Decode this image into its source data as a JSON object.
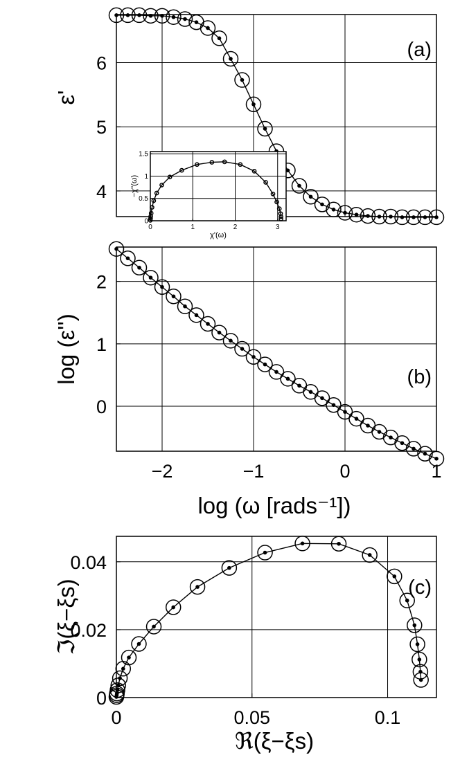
{
  "chart_data": [
    {
      "id": "a",
      "type": "scatter",
      "panel_label": "(a)",
      "title": "",
      "xlabel": "",
      "ylabel": "ε'",
      "xlim": [
        -2.5,
        1.0
      ],
      "ylim": [
        3.6,
        6.75
      ],
      "xticks": [
        -2,
        -1,
        0,
        1
      ],
      "show_xtick_labels": false,
      "yticks": [
        4,
        5,
        6
      ],
      "ytick_labels": [
        "4",
        "5",
        "6"
      ],
      "grid": true,
      "markers": "open circles with center dots joined by a line",
      "series": [
        {
          "x": [
            -2.5,
            -2.375,
            -2.25,
            -2.125,
            -2.0,
            -1.875,
            -1.75,
            -1.625,
            -1.5,
            -1.375,
            -1.25,
            -1.125,
            -1.0,
            -0.875,
            -0.75,
            -0.625,
            -0.5,
            -0.375,
            -0.25,
            -0.125,
            0.0,
            0.125,
            0.25,
            0.375,
            0.5,
            0.625,
            0.75,
            0.875,
            1.0
          ],
          "y": [
            6.74,
            6.74,
            6.74,
            6.73,
            6.73,
            6.71,
            6.68,
            6.63,
            6.54,
            6.38,
            6.06,
            5.73,
            5.35,
            4.97,
            4.62,
            4.32,
            4.08,
            3.91,
            3.79,
            3.71,
            3.66,
            3.63,
            3.61,
            3.6,
            3.6,
            3.59,
            3.59,
            3.59,
            3.59
          ]
        }
      ]
    },
    {
      "id": "a-inset",
      "type": "scatter",
      "title": "",
      "xlabel": "χ'(ω)",
      "ylabel": "−χ''(ω)",
      "xlim": [
        0,
        3.2
      ],
      "ylim": [
        0,
        1.55
      ],
      "xticks": [
        0,
        1,
        2,
        3
      ],
      "xtick_labels": [
        "0",
        "1",
        "2",
        "3"
      ],
      "yticks": [
        0,
        0.5,
        1,
        1.5
      ],
      "ytick_labels": [
        "0",
        "0.5",
        "1",
        "1.5"
      ],
      "grid": true,
      "markers": "open circles joined by a line",
      "series": [
        {
          "x": [
            0.0,
            0.005,
            0.01,
            0.02,
            0.04,
            0.08,
            0.15,
            0.27,
            0.46,
            0.74,
            1.1,
            1.45,
            1.75,
            2.12,
            2.45,
            2.72,
            2.89,
            2.98,
            3.04,
            3.07,
            3.08,
            3.08
          ],
          "y": [
            0.01,
            0.05,
            0.1,
            0.17,
            0.3,
            0.45,
            0.62,
            0.8,
            0.98,
            1.13,
            1.26,
            1.31,
            1.32,
            1.26,
            1.11,
            0.86,
            0.6,
            0.42,
            0.27,
            0.16,
            0.09,
            0.04
          ]
        }
      ]
    },
    {
      "id": "b",
      "type": "scatter",
      "panel_label": "(b)",
      "title": "",
      "xlabel": "log (ω [rads⁻¹])",
      "ylabel": "log (ε'')",
      "xlim": [
        -2.5,
        1.0
      ],
      "ylim": [
        -0.72,
        2.55
      ],
      "xticks": [
        -2,
        -1,
        0,
        1
      ],
      "xtick_labels": [
        "−2",
        "−1",
        "0",
        "1"
      ],
      "yticks": [
        0,
        1,
        2
      ],
      "ytick_labels": [
        "0",
        "1",
        "2"
      ],
      "grid": true,
      "markers": "open circles with center dots joined by a line",
      "series": [
        {
          "x": [
            -2.5,
            -2.375,
            -2.25,
            -2.125,
            -2.0,
            -1.875,
            -1.75,
            -1.625,
            -1.5,
            -1.375,
            -1.25,
            -1.125,
            -1.0,
            -0.875,
            -0.75,
            -0.625,
            -0.5,
            -0.375,
            -0.25,
            -0.125,
            0.0,
            0.125,
            0.25,
            0.375,
            0.5,
            0.625,
            0.75,
            0.875,
            1.0
          ],
          "y": [
            2.52,
            2.37,
            2.22,
            2.06,
            1.91,
            1.76,
            1.6,
            1.46,
            1.32,
            1.18,
            1.05,
            0.92,
            0.79,
            0.67,
            0.55,
            0.44,
            0.33,
            0.23,
            0.13,
            0.02,
            -0.09,
            -0.2,
            -0.31,
            -0.41,
            -0.5,
            -0.59,
            -0.68,
            -0.76,
            -0.84
          ]
        }
      ]
    },
    {
      "id": "c",
      "type": "scatter",
      "panel_label": "(c)",
      "title": "",
      "xlabel": "ℜ(ξ−ξs)",
      "ylabel": "ℑ(ξ−ξs)",
      "xlim": [
        0,
        0.118
      ],
      "ylim": [
        0,
        0.0475
      ],
      "xticks": [
        0,
        0.05,
        0.1
      ],
      "xtick_labels": [
        "0",
        "0.05",
        "0.1"
      ],
      "yticks": [
        0,
        0.02,
        0.04
      ],
      "ytick_labels": [
        "0",
        "0.02",
        "0.04"
      ],
      "grid": true,
      "markers": "open circles with center dots joined by a line",
      "series": [
        {
          "x": [
            0.0,
            0.0001,
            0.0002,
            0.0004,
            0.0007,
            0.0013,
            0.0025,
            0.0046,
            0.0083,
            0.0138,
            0.021,
            0.0299,
            0.0416,
            0.0548,
            0.0686,
            0.082,
            0.0934,
            0.1025,
            0.1072,
            0.1099,
            0.111,
            0.1117,
            0.1121,
            0.1123
          ],
          "y": [
            0.0002,
            0.0007,
            0.0012,
            0.0022,
            0.0036,
            0.0057,
            0.0085,
            0.0118,
            0.0158,
            0.0209,
            0.0266,
            0.0326,
            0.0382,
            0.0427,
            0.0454,
            0.0453,
            0.042,
            0.0357,
            0.0286,
            0.0213,
            0.0157,
            0.0112,
            0.0076,
            0.0052
          ]
        }
      ]
    }
  ]
}
